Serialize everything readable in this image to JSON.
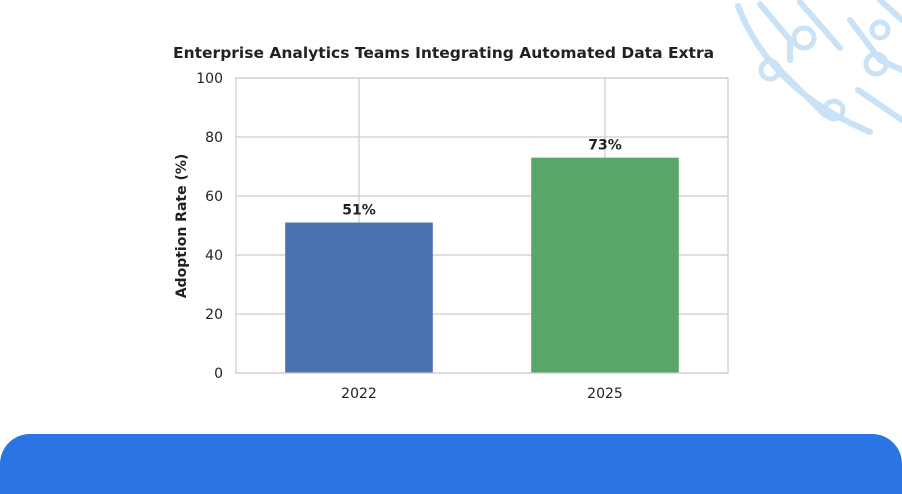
{
  "colors": {
    "background": "#ffffff",
    "grid": "#cccccc",
    "axis": "#cccccc",
    "footer_bar": "#2b74e4",
    "decoration": "#c9e2f5"
  },
  "decoration": {
    "icon": "circuit-pattern-icon"
  },
  "chart_data": {
    "type": "bar",
    "title": "Enterprise Analytics Teams Integrating Automated Data Extra",
    "xlabel": "",
    "ylabel": "Adoption Rate (%)",
    "categories": [
      "2022",
      "2025"
    ],
    "values": [
      51,
      73
    ],
    "data_labels": [
      "51%",
      "73%"
    ],
    "bar_colors": [
      "#4a72b0",
      "#58a769"
    ],
    "ylim": [
      0,
      100
    ],
    "yticks": [
      0,
      20,
      40,
      60,
      80,
      100
    ],
    "grid": true,
    "legend": "none"
  }
}
